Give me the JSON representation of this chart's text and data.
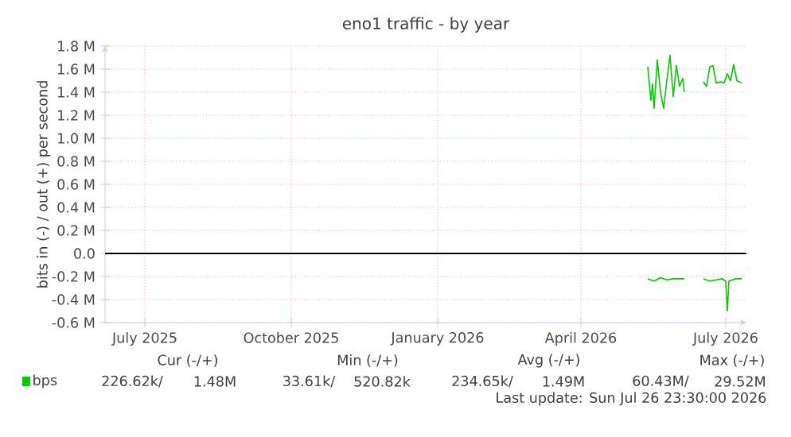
{
  "chart_data": {
    "type": "line",
    "title": "eno1 traffic - by year",
    "ylabel": "bits in (-) / out (+) per second",
    "xlim": [
      "2025-06-06",
      "2026-07-14"
    ],
    "xticks": [
      {
        "value": "2025-07-01",
        "label": "July 2025"
      },
      {
        "value": "2025-10-01",
        "label": "October 2025"
      },
      {
        "value": "2026-01-01",
        "label": "January 2026"
      },
      {
        "value": "2026-04-01",
        "label": "April 2026"
      },
      {
        "value": "2026-07-01",
        "label": "July 2026"
      }
    ],
    "ylim": [
      -0.6,
      1.8
    ],
    "yticks": [
      {
        "value": -0.6,
        "label": "-0.6 M"
      },
      {
        "value": -0.4,
        "label": "-0.4 M"
      },
      {
        "value": -0.2,
        "label": "-0.2 M"
      },
      {
        "value": 0,
        "label": "0.0"
      },
      {
        "value": 0.2,
        "label": "0.2 M"
      },
      {
        "value": 0.4,
        "label": "0.4 M"
      },
      {
        "value": 0.6,
        "label": "0.6 M"
      },
      {
        "value": 0.8,
        "label": "0.8 M"
      },
      {
        "value": 1.0,
        "label": "1.0 M"
      },
      {
        "value": 1.2,
        "label": "1.2 M"
      },
      {
        "value": 1.4,
        "label": "1.4 M"
      },
      {
        "value": 1.6,
        "label": "1.6 M"
      },
      {
        "value": 1.8,
        "label": "1.8 M"
      }
    ],
    "grid": true,
    "legend": "bottom left",
    "ref_lines": [
      {
        "axis": "y",
        "value": 0,
        "color": "#000000"
      }
    ],
    "series": [
      {
        "name": "bps",
        "color": "#00cc00",
        "x": [
          "2026-05-13",
          "2026-05-15",
          "2026-05-16",
          "2026-05-17",
          "2026-05-19",
          "2026-05-21",
          "2026-05-23",
          "2026-05-25",
          "2026-05-27",
          "2026-05-29",
          "2026-05-31",
          "2026-06-02",
          "2026-06-04",
          "2026-06-05",
          "2026-06-11",
          "2026-06-17",
          "2026-06-19",
          "2026-06-21",
          "2026-06-23",
          "2026-06-25",
          "2026-06-28",
          "2026-06-30",
          "2026-07-02",
          "2026-07-04",
          "2026-07-06",
          "2026-07-08",
          "2026-07-11"
        ],
        "values": [
          1.62,
          1.33,
          1.47,
          1.26,
          1.68,
          1.4,
          1.26,
          1.5,
          1.72,
          1.36,
          1.63,
          1.45,
          1.52,
          1.4,
          null,
          1.49,
          1.45,
          1.62,
          1.63,
          1.48,
          1.49,
          1.48,
          1.56,
          1.5,
          1.64,
          1.5,
          1.48
        ]
      },
      {
        "color": "#00cc00",
        "x": [
          "2026-05-13",
          "2026-05-17",
          "2026-05-21",
          "2026-05-25",
          "2026-05-29",
          "2026-06-02",
          "2026-06-05",
          "2026-06-11",
          "2026-06-17",
          "2026-06-21",
          "2026-06-25",
          "2026-06-29",
          "2026-07-01",
          "2026-07-02",
          "2026-07-03",
          "2026-07-07",
          "2026-07-11"
        ],
        "values": [
          -0.22,
          -0.24,
          -0.21,
          -0.23,
          -0.22,
          -0.22,
          -0.22,
          null,
          -0.22,
          -0.24,
          -0.23,
          -0.22,
          -0.24,
          -0.5,
          -0.24,
          -0.22,
          -0.22
        ]
      }
    ],
    "annotations": [
      "Cur (-/+)",
      "Min (-/+)",
      "Avg (-/+)",
      "Max (-/+)",
      "226.62k/",
      "1.48M",
      "33.61k/",
      "520.82k",
      "234.65k/",
      "1.49M",
      "60.43M/",
      "29.52M",
      "Last update: Sun Jul 26 23:30:00 2026"
    ]
  }
}
